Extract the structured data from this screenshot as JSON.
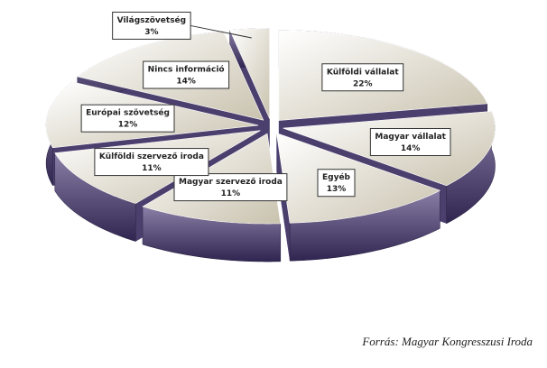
{
  "chart_data": {
    "type": "pie3d",
    "categories": [
      "Külföldi vállalat",
      "Magyar vállalat",
      "Egyéb",
      "Magyar szervező iroda",
      "Külföldi szervező iroda",
      "Európai szövetség",
      "Nincs információ",
      "Világszövetség"
    ],
    "values": [
      22,
      14,
      13,
      11,
      11,
      12,
      14,
      3
    ],
    "value_labels": [
      "22%",
      "14%",
      "13%",
      "11%",
      "11%",
      "12%",
      "14%",
      "3%"
    ],
    "top_color": "#e9e5da",
    "side_color": "#4b3f6e",
    "source": "Forrás: Magyar Kongresszusi Iroda"
  }
}
